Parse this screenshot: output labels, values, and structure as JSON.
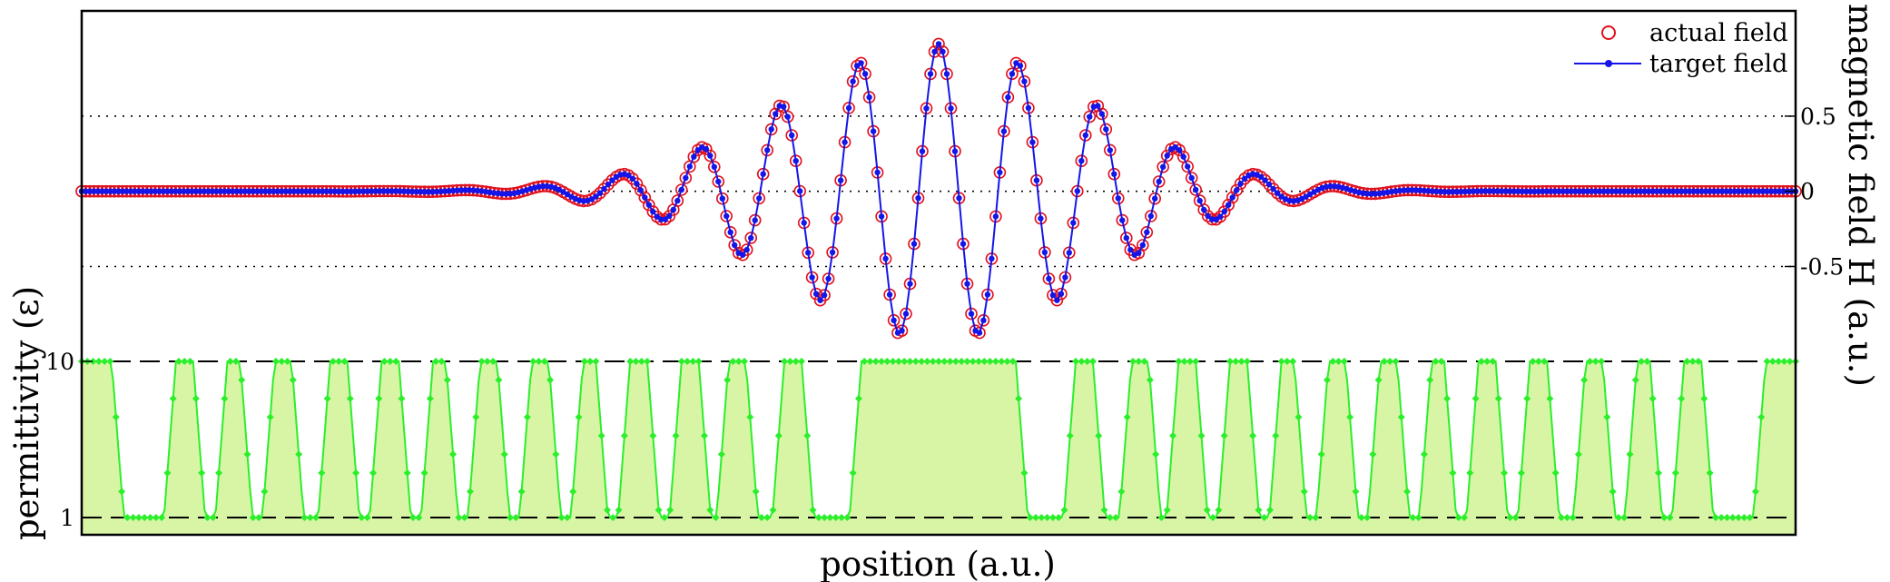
{
  "chart_data": {
    "type": "line",
    "xlabel": "position (a.u.)",
    "ylabel_left": "permittivity (ε)",
    "ylabel_right": "magnetic field H (a.u.)",
    "x_tick_labels": false,
    "upper_panel": {
      "quantity": "magnetic field H",
      "ylim": [
        -0.95,
        1.2
      ],
      "yticks": [
        {
          "value": 0.5,
          "label": "0.5"
        },
        {
          "value": 0,
          "label": "0"
        },
        {
          "value": -0.5,
          "label": "-0.5"
        }
      ],
      "reference_lines": [
        0.5,
        0,
        -0.5
      ],
      "reference_line_style": "dotted",
      "waveform": {
        "description_kind": "gaussian-windowed cosine centred at x = 0",
        "amplitude": 0.98,
        "wavelength": 0.0925,
        "gaussian_sigma": 0.178,
        "x_range": [
          -1,
          1
        ]
      },
      "series": [
        {
          "name": "actual field",
          "marker": "open-circle",
          "color": "#e0111d"
        },
        {
          "name": "target field",
          "marker": "filled-dot-line",
          "color": "#1515e8"
        }
      ],
      "legend_placement": "top-right"
    },
    "lower_panel": {
      "quantity": "permittivity",
      "ylim": [
        0.8,
        11.5
      ],
      "yticks": [
        {
          "value": 10,
          "label": "10"
        },
        {
          "value": 1,
          "label": "1"
        }
      ],
      "reference_lines": [
        10,
        1
      ],
      "reference_line_style": "dashed",
      "levels": {
        "high": 10,
        "low": 1
      },
      "high_bands_x": [
        [
          -1.0,
          -0.965
        ],
        [
          -0.89,
          -0.87
        ],
        [
          -0.83,
          -0.815
        ],
        [
          -0.775,
          -0.755
        ],
        [
          -0.71,
          -0.69
        ],
        [
          -0.65,
          -0.63
        ],
        [
          -0.59,
          -0.575
        ],
        [
          -0.535,
          -0.515
        ],
        [
          -0.475,
          -0.455
        ],
        [
          -0.415,
          -0.4
        ],
        [
          -0.36,
          -0.34
        ],
        [
          -0.3,
          -0.28
        ],
        [
          -0.245,
          -0.225
        ],
        [
          -0.18,
          -0.16
        ],
        [
          -0.09,
          0.09
        ],
        [
          0.16,
          0.18
        ],
        [
          0.225,
          0.245
        ],
        [
          0.28,
          0.3
        ],
        [
          0.34,
          0.36
        ],
        [
          0.4,
          0.415
        ],
        [
          0.455,
          0.475
        ],
        [
          0.515,
          0.535
        ],
        [
          0.575,
          0.59
        ],
        [
          0.63,
          0.65
        ],
        [
          0.69,
          0.71
        ],
        [
          0.755,
          0.775
        ],
        [
          0.815,
          0.83
        ],
        [
          0.87,
          0.89
        ],
        [
          0.965,
          1.0
        ]
      ],
      "line_color": "#2bef2b",
      "fill_color": "#d8f5a6"
    }
  }
}
